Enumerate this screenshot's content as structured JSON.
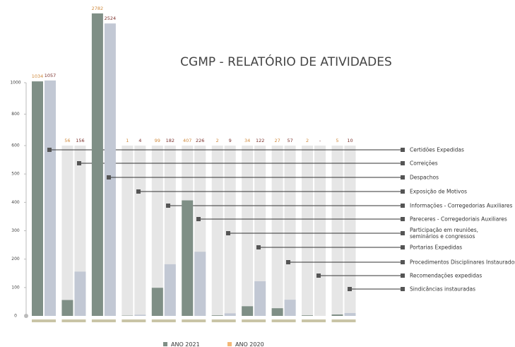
{
  "chart_data": {
    "type": "bar",
    "title": "CGMP - RELATÓRIO DE ATIVIDADES",
    "categories": [
      "Certidões Expedidas",
      "Correições",
      "Despachos",
      "Exposição de Motivos",
      "Informações - Corregedorias Auxiliares",
      "Pareceres - Corregedoriais Auxiliares",
      "Participação em reuniões,\nseminários e congressos",
      "Portarias Expedidas",
      "Procedimentos Disciplinares Instaurados",
      "Recomendações expedidas",
      "Sindicâncias instauradas"
    ],
    "series": [
      {
        "name": "ANO 2021",
        "color": "#7f8f86",
        "legend_color": "#7f8f86",
        "label_color": "#d08a3c",
        "values": [
          1034,
          56,
          2782,
          1,
          99,
          407,
          2,
          34,
          27,
          2,
          5
        ]
      },
      {
        "name": "ANO 2020",
        "color": "#c2c8d4",
        "legend_color": "#f2b878",
        "label_color": "#7a2f2a",
        "values": [
          1057,
          156,
          2524,
          4,
          182,
          226,
          9,
          122,
          57,
          null,
          10
        ],
        "value_labels": [
          "1057",
          "156",
          "2524",
          "4",
          "182",
          "226",
          "9",
          "122",
          "57",
          "-",
          "10"
        ]
      }
    ],
    "ylim": [
      0,
      2800
    ],
    "ybreaks": [
      600,
      1000
    ],
    "yticks": [
      0,
      100,
      200,
      300,
      400,
      500,
      600,
      800,
      1000
    ]
  }
}
